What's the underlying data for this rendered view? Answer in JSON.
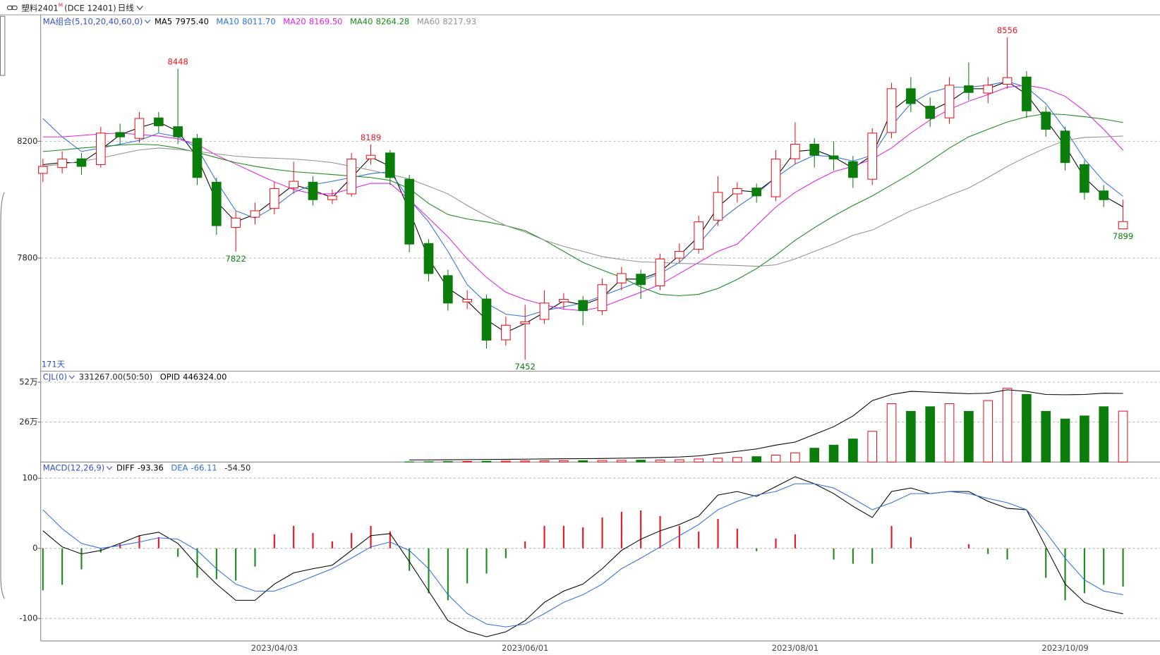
{
  "header": {
    "symbol": "塑料2401",
    "mark": "M",
    "exchange": "(DCE 12401)",
    "period": "日线"
  },
  "chart_data": [
    {
      "type": "candlestick",
      "legend_title": "MA组合(5,10,20,40,60,0)",
      "days_label": "171天",
      "categories": [
        null,
        null,
        null,
        null,
        null,
        null,
        null,
        null,
        null,
        null,
        null,
        null,
        "2023/04/03",
        null,
        null,
        null,
        null,
        null,
        null,
        null,
        null,
        null,
        null,
        null,
        null,
        "2023/06/01",
        null,
        null,
        null,
        null,
        null,
        null,
        null,
        null,
        null,
        null,
        null,
        null,
        null,
        "2023/08/01",
        null,
        null,
        null,
        null,
        null,
        null,
        null,
        null,
        null,
        null,
        null,
        null,
        null,
        "2023/10/09",
        null,
        null,
        null
      ],
      "open": [
        8090,
        8110,
        8140,
        8120,
        8230,
        8210,
        8280,
        8250,
        8210,
        8060,
        7905,
        7940,
        7970,
        8040,
        8060,
        8000,
        8020,
        8140,
        8160,
        8070,
        7850,
        7740,
        7650,
        7660,
        7520,
        7575,
        7590,
        7650,
        7655,
        7620,
        7715,
        7745,
        7705,
        7800,
        7830,
        7930,
        8020,
        8040,
        8010,
        8140,
        8190,
        8150,
        8130,
        8070,
        8230,
        8380,
        8320,
        8280,
        8390,
        8365,
        8395,
        8420,
        8300,
        8235,
        8120,
        8030,
        7900
      ],
      "high": [
        8140,
        8165,
        8160,
        8250,
        8260,
        8300,
        8300,
        8448,
        8225,
        8075,
        7960,
        7990,
        8060,
        8130,
        8080,
        8035,
        8160,
        8189,
        8170,
        8085,
        7865,
        7760,
        7690,
        7675,
        7600,
        7640,
        7690,
        7680,
        7670,
        7730,
        7770,
        7760,
        7815,
        7850,
        7945,
        8080,
        8060,
        8055,
        8170,
        8265,
        8210,
        8200,
        8150,
        8245,
        8400,
        8420,
        8350,
        8420,
        8470,
        8420,
        8556,
        8440,
        8320,
        8250,
        8135,
        8050,
        8000
      ],
      "low": [
        8060,
        8090,
        8085,
        8110,
        8190,
        8195,
        8230,
        8190,
        8050,
        7880,
        7822,
        7915,
        7950,
        8020,
        7980,
        7985,
        8010,
        8120,
        8050,
        7820,
        7720,
        7620,
        7625,
        7490,
        7500,
        7452,
        7575,
        7625,
        7570,
        7605,
        7690,
        7660,
        7690,
        7785,
        7815,
        7910,
        7990,
        7990,
        7995,
        8120,
        8110,
        8100,
        8040,
        8050,
        8210,
        8300,
        8250,
        8260,
        8340,
        8330,
        8380,
        8280,
        8215,
        8100,
        8000,
        7975,
        7899
      ],
      "close": [
        8114,
        8139,
        8114,
        8228,
        8215,
        8278,
        8253,
        8215,
        8076,
        7911,
        7937,
        7962,
        8038,
        8063,
        8000,
        8013,
        8139,
        8152,
        8076,
        7848,
        7747,
        7646,
        7659,
        7519,
        7570,
        7582,
        7646,
        7659,
        7620,
        7709,
        7747,
        7709,
        7797,
        7823,
        7924,
        8025,
        8038,
        8013,
        8139,
        8190,
        8152,
        8139,
        8076,
        8228,
        8380,
        8329,
        8278,
        8392,
        8367,
        8392,
        8418,
        8304,
        8241,
        8127,
        8025,
        8000,
        7925
      ],
      "up_color": "#e8141e",
      "down_color": "#0a7d0a",
      "legend_color": "#2f4fc8",
      "series": [
        {
          "name": "MA5",
          "color": "#000000",
          "legend_value": {
            "value": 7975.4,
            "label": "7975.40"
          },
          "values": [
            8120,
            8127,
            8127,
            8171,
            8222,
            8247,
            8266,
            8234,
            8146,
            7994,
            7924,
            7950,
            8000,
            8051,
            8032,
            8007,
            8076,
            8146,
            8114,
            7962,
            7798,
            7697,
            7653,
            7589,
            7545,
            7576,
            7614,
            7653,
            7640,
            7665,
            7728,
            7728,
            7753,
            7810,
            7874,
            7975,
            8032,
            8026,
            8076,
            8165,
            8171,
            8146,
            8108,
            8152,
            8304,
            8355,
            8304,
            8335,
            8380,
            8380,
            8405,
            8361,
            8273,
            8184,
            8076,
            8013,
            7975.4
          ]
        },
        {
          "name": "MA10",
          "color": "#2f6fdf",
          "legend_value": {
            "value": 8011.7,
            "label": "8011.70"
          },
          "values": [
            8278,
            8215,
            8165,
            8177,
            8190,
            8203,
            8228,
            8215,
            8177,
            8063,
            7962,
            7937,
            7975,
            8025,
            8051,
            8063,
            8076,
            8089,
            8096,
            8000,
            7924,
            7823,
            7709,
            7646,
            7608,
            7600,
            7620,
            7633,
            7646,
            7671,
            7696,
            7721,
            7747,
            7785,
            7848,
            7924,
            7975,
            8020,
            8076,
            8122,
            8152,
            8147,
            8132,
            8152,
            8253,
            8329,
            8367,
            8385,
            8385,
            8392,
            8405,
            8385,
            8329,
            8241,
            8139,
            8063,
            8011.7
          ]
        },
        {
          "name": "MA20",
          "color": "#e020e0",
          "legend_value": {
            "value": 8169.5,
            "label": "8169.50"
          },
          "values": [
            8215,
            8215,
            8220,
            8225,
            8228,
            8223,
            8218,
            8208,
            8190,
            8152,
            8122,
            8091,
            8061,
            8035,
            8020,
            8020,
            8038,
            8056,
            8056,
            8000,
            7937,
            7873,
            7797,
            7734,
            7683,
            7658,
            7640,
            7625,
            7620,
            7633,
            7658,
            7683,
            7709,
            7747,
            7785,
            7823,
            7848,
            7911,
            7975,
            8025,
            8063,
            8096,
            8114,
            8139,
            8177,
            8228,
            8273,
            8309,
            8337,
            8360,
            8385,
            8392,
            8380,
            8354,
            8304,
            8241,
            8169.5
          ]
        },
        {
          "name": "MA40",
          "color": "#1a8a1a",
          "legend_value": {
            "value": 8264.28,
            "label": "8264.28"
          },
          "values": [
            8165,
            8170,
            8177,
            8182,
            8187,
            8190,
            8187,
            8177,
            8162,
            8144,
            8127,
            8114,
            8104,
            8096,
            8091,
            8086,
            8081,
            8076,
            8066,
            8038,
            7987,
            7949,
            7934,
            7924,
            7911,
            7894,
            7861,
            7823,
            7785,
            7759,
            7734,
            7701,
            7676,
            7671,
            7676,
            7696,
            7727,
            7764,
            7810,
            7861,
            7904,
            7944,
            7980,
            8013,
            8051,
            8089,
            8132,
            8177,
            8215,
            8241,
            8266,
            8284,
            8294,
            8291,
            8284,
            8276,
            8264.28
          ]
        },
        {
          "name": "MA60",
          "color": "#909090",
          "legend_value": {
            "value": 8217.93,
            "label": "8217.93"
          },
          "values": [
            8114,
            8122,
            8132,
            8142,
            8157,
            8170,
            8177,
            8172,
            8165,
            8157,
            8149,
            8144,
            8142,
            8139,
            8134,
            8127,
            8114,
            8101,
            8086,
            8071,
            8046,
            8020,
            7980,
            7944,
            7911,
            7889,
            7861,
            7840,
            7823,
            7805,
            7795,
            7787,
            7785,
            7782,
            7780,
            7777,
            7775,
            7772,
            7777,
            7797,
            7823,
            7848,
            7878,
            7896,
            7929,
            7962,
            7987,
            8015,
            8040,
            8076,
            8114,
            8147,
            8177,
            8203,
            8213,
            8215,
            8217.93
          ]
        }
      ],
      "ylim": [
        7413,
        8633
      ],
      "yticks": [
        7800,
        8200
      ],
      "grid": true
    },
    {
      "type": "volume",
      "legend_title": "CJL(0)",
      "readout": "331267.00(50:50)",
      "legend_color": "#2f4fc8",
      "values": [
        0,
        0,
        0,
        0,
        0,
        0,
        0,
        0,
        0,
        0,
        0,
        0,
        0,
        0,
        0,
        0,
        0,
        0,
        0,
        1000,
        2000,
        3000,
        4000,
        5000,
        6000,
        7000,
        8000,
        9000,
        9000,
        10000,
        11000,
        12000,
        13000,
        15000,
        20000,
        25000,
        30000,
        35000,
        45000,
        60000,
        90000,
        110000,
        150000,
        200000,
        380000,
        330000,
        360000,
        380000,
        330000,
        400000,
        480000,
        440000,
        330000,
        280000,
        300000,
        360000,
        331267
      ],
      "series": [
        {
          "name": "OPID",
          "color": "#000000",
          "legend_value": {
            "value": 446324,
            "label": "446324.00"
          },
          "values": [
            null,
            null,
            null,
            null,
            null,
            null,
            null,
            null,
            null,
            null,
            null,
            null,
            null,
            null,
            null,
            null,
            null,
            null,
            null,
            14000,
            14000,
            15000,
            16000,
            17000,
            18000,
            19000,
            20000,
            21000,
            22000,
            23000,
            25000,
            27000,
            30000,
            33000,
            40000,
            55000,
            70000,
            85000,
            110000,
            130000,
            180000,
            230000,
            300000,
            400000,
            440000,
            460000,
            455000,
            450000,
            445000,
            448000,
            470000,
            460000,
            440000,
            438000,
            440000,
            448000,
            446324
          ]
        }
      ],
      "ylim": [
        0,
        587000
      ],
      "yticks": [
        {
          "value": 260000,
          "label": "26万"
        },
        {
          "value": 520000,
          "label": "52万"
        }
      ],
      "grid": true
    },
    {
      "type": "macd",
      "legend_title": "MACD(12,26,9)",
      "legend_color": "#2f4fc8",
      "series": [
        {
          "name": "DIFF",
          "color": "#000000",
          "legend_value": {
            "value": -93.36,
            "label": "-93.36"
          },
          "values": [
            25,
            2,
            -8,
            -3,
            7,
            18,
            23,
            7,
            -24,
            -51,
            -74,
            -74,
            -51,
            -35,
            -29,
            -24,
            -3,
            18,
            21,
            -19,
            -61,
            -103,
            -118,
            -126,
            -119,
            -103,
            -77,
            -61,
            -51,
            -29,
            -3,
            13,
            25,
            34,
            46,
            76,
            81,
            74,
            88,
            102,
            92,
            78,
            60,
            44,
            81,
            86,
            78,
            81,
            81,
            67,
            57,
            55,
            2,
            -51,
            -77,
            -87,
            -93.36
          ]
        },
        {
          "name": "DEA",
          "color": "#2f6fdf",
          "legend_value": {
            "value": -66.11,
            "label": "-66.11"
          },
          "values": [
            55,
            28,
            7,
            0,
            4,
            9,
            15,
            13,
            -3,
            -29,
            -51,
            -61,
            -61,
            -51,
            -40,
            -29,
            -14,
            2,
            9,
            -3,
            -29,
            -66,
            -93,
            -108,
            -112,
            -108,
            -93,
            -77,
            -66,
            -51,
            -29,
            -14,
            2,
            18,
            34,
            55,
            67,
            76,
            81,
            92,
            92,
            86,
            71,
            55,
            65,
            78,
            78,
            81,
            78,
            71,
            65,
            55,
            23,
            -14,
            -45,
            -61,
            -66.11
          ]
        }
      ],
      "histogram": {
        "legend_value": {
          "value": -54.5,
          "label": "-54.50"
        },
        "up_color": "#e8141e",
        "down_color": "#1a8a1a",
        "values": [
          -60,
          -52,
          -30,
          -6,
          6,
          18,
          16,
          -12,
          -42,
          -44,
          -46,
          -26,
          20,
          32,
          22,
          10,
          22,
          32,
          24,
          -32,
          -64,
          -74,
          -50,
          -36,
          -14,
          10,
          32,
          32,
          30,
          44,
          52,
          54,
          46,
          32,
          24,
          42,
          28,
          -4,
          14,
          20,
          0,
          -16,
          -22,
          -22,
          32,
          16,
          0,
          0,
          6,
          -8,
          -16,
          0,
          -42,
          -74,
          -64,
          -52,
          -54.5
        ]
      },
      "ylim": [
        -132,
        123
      ],
      "yticks": [
        -100,
        0,
        100
      ],
      "grid": true
    }
  ]
}
